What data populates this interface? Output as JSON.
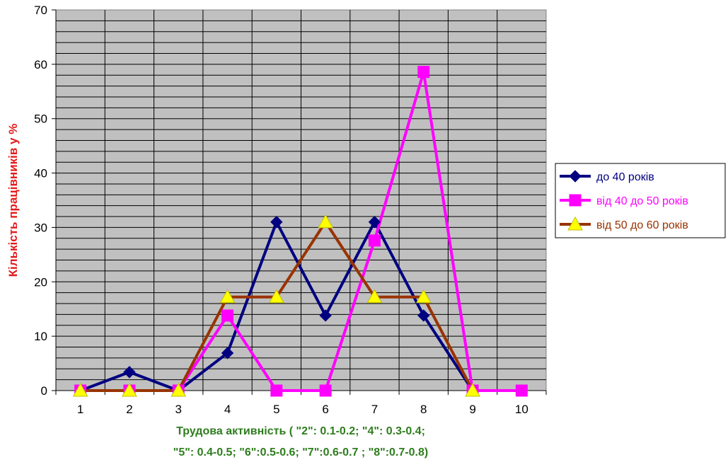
{
  "chart_data": {
    "type": "line",
    "categories": [
      "1",
      "2",
      "3",
      "4",
      "5",
      "6",
      "7",
      "8",
      "9",
      "10"
    ],
    "series": [
      {
        "name": "до 40 років",
        "color": "#000080",
        "marker": "diamond",
        "values": [
          0,
          3.4,
          0,
          6.9,
          31,
          13.8,
          31,
          13.8,
          0,
          null
        ]
      },
      {
        "name": "від 40 до 50 років",
        "color": "#ff00ff",
        "marker": "square",
        "values": [
          0,
          0,
          0,
          13.8,
          0,
          0,
          27.6,
          58.6,
          0,
          0
        ]
      },
      {
        "name": "від 50 до 60 років",
        "color": "#993300",
        "marker": "triangle",
        "marker_color": "#ffff00",
        "values": [
          0,
          0,
          0,
          17.2,
          17.2,
          31,
          17.2,
          17.2,
          0,
          null
        ]
      }
    ],
    "xlabel_lines": [
      "Трудова активність ( \"2\": 0.1-0.2; \"4\": 0.3-0.4;",
      "\"5\": 0.4-0.5; \"6\":0.5-0.6; \"7\":0.6-0.7 ; \"8\":0.7-0.8)"
    ],
    "ylabel": "Кількість працівників у %",
    "ylim": [
      0,
      70
    ],
    "yticks": [
      0,
      10,
      20,
      30,
      40,
      50,
      60,
      70
    ],
    "minor_grid_step": 2,
    "grid": true,
    "plot_background": "#c0c0c0",
    "legend_position": "right"
  }
}
